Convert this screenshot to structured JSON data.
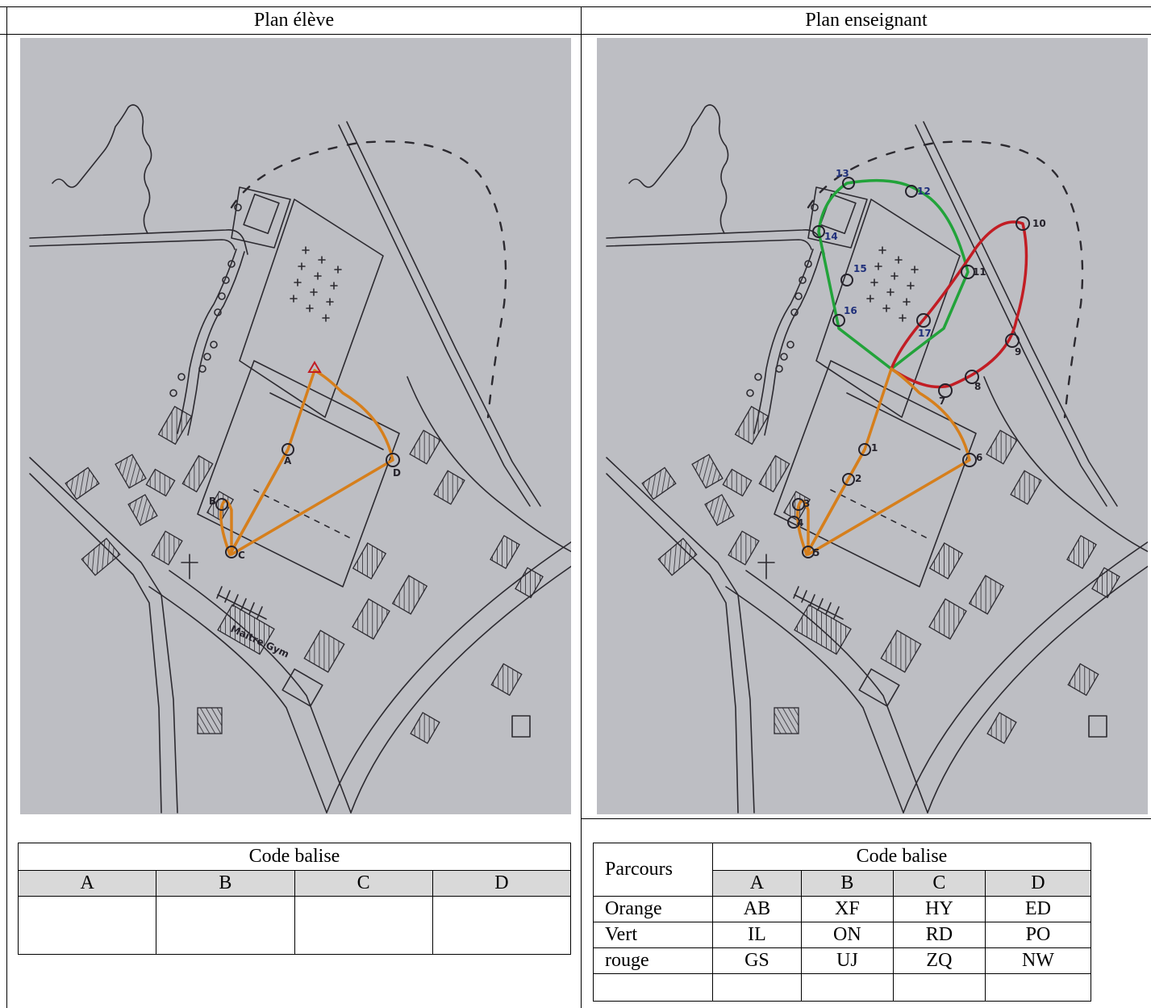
{
  "columns": {
    "left_title": "Plan élève",
    "right_title": "Plan enseignant"
  },
  "student_map": {
    "controls": [
      "A",
      "B",
      "C",
      "D"
    ],
    "map_text": "Maitre Gym"
  },
  "teacher_map": {
    "orange_numbers": [
      "1",
      "2",
      "3",
      "4",
      "5",
      "6"
    ],
    "red_numbers": [
      "7",
      "8",
      "9",
      "10",
      "11",
      "12"
    ],
    "green_numbers": [
      "12",
      "13",
      "14",
      "15",
      "16",
      "17"
    ]
  },
  "student_table": {
    "header": "Code balise",
    "columns": [
      "A",
      "B",
      "C",
      "D"
    ],
    "rows": [
      [
        "",
        "",
        "",
        ""
      ]
    ]
  },
  "teacher_table": {
    "row_header": "Parcours",
    "header": "Code balise",
    "columns": [
      "A",
      "B",
      "C",
      "D"
    ],
    "rows": [
      {
        "parcours": "Orange",
        "codes": [
          "AB",
          "XF",
          "HY",
          "ED"
        ]
      },
      {
        "parcours": "Vert",
        "codes": [
          "IL",
          "ON",
          "RD",
          "PO"
        ]
      },
      {
        "parcours": "rouge",
        "codes": [
          "GS",
          "UJ",
          "ZQ",
          "NW"
        ]
      },
      {
        "parcours": "",
        "codes": [
          "",
          "",
          "",
          ""
        ]
      }
    ]
  },
  "colors": {
    "orange_route": "#d67f1c",
    "green_route": "#22a33a",
    "red_route": "#c21d24",
    "map_background": "#bdbec3"
  }
}
